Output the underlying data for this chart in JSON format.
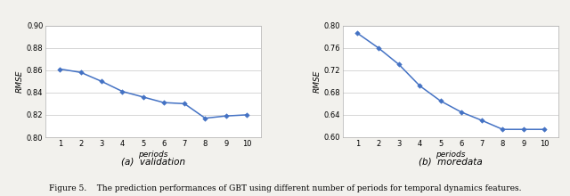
{
  "left": {
    "x": [
      1,
      2,
      3,
      4,
      5,
      6,
      7,
      8,
      9,
      10
    ],
    "y": [
      0.861,
      0.858,
      0.85,
      0.841,
      0.836,
      0.831,
      0.83,
      0.817,
      0.819,
      0.82
    ],
    "ylim": [
      0.8,
      0.9
    ],
    "yticks": [
      0.8,
      0.82,
      0.84,
      0.86,
      0.88,
      0.9
    ],
    "xlabel": "periods",
    "ylabel": "RMSE",
    "subtitle": "(a)  validation"
  },
  "right": {
    "x": [
      1,
      2,
      3,
      4,
      5,
      6,
      7,
      8,
      9,
      10
    ],
    "y": [
      0.786,
      0.76,
      0.73,
      0.692,
      0.665,
      0.645,
      0.63,
      0.614,
      0.614,
      0.614
    ],
    "ylim": [
      0.6,
      0.8
    ],
    "yticks": [
      0.6,
      0.64,
      0.68,
      0.72,
      0.76,
      0.8
    ],
    "xlabel": "periods",
    "ylabel": "RMSE",
    "subtitle": "(b)  moredata"
  },
  "line_color": "#4472C4",
  "marker": "D",
  "marker_size": 2.8,
  "line_width": 1.1,
  "caption": "Figure 5.    The prediction performances of GBT using different number of periods for temporal dynamics features.",
  "bg_color": "#f2f1ed",
  "plot_bg_color": "#ffffff",
  "grid_color": "#d0d0d0",
  "subtitle_fontsize": 7.5,
  "axis_label_fontsize": 6.5,
  "tick_fontsize": 6.0,
  "caption_fontsize": 6.5
}
